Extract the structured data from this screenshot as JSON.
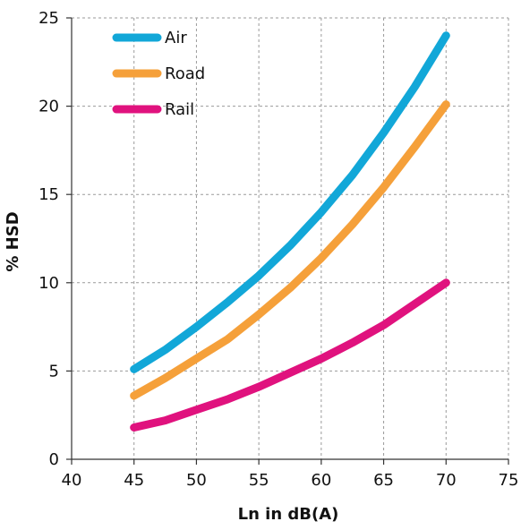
{
  "chart_data": {
    "type": "line",
    "title": "",
    "xlabel": "Ln in dB(A)",
    "ylabel": "% HSD",
    "xlim": [
      40,
      75
    ],
    "ylim": [
      0,
      25
    ],
    "xticks": [
      40,
      45,
      50,
      55,
      60,
      65,
      70,
      75
    ],
    "yticks": [
      0,
      5,
      10,
      15,
      20,
      25
    ],
    "grid": true,
    "legend_position": "top-left",
    "series": [
      {
        "name": "Air",
        "color": "#12A7D8",
        "x": [
          45,
          47.5,
          50,
          52.5,
          55,
          57.5,
          60,
          62.5,
          65,
          67.5,
          70
        ],
        "y": [
          5.1,
          6.2,
          7.5,
          8.9,
          10.4,
          12.1,
          14.0,
          16.1,
          18.5,
          21.1,
          24.0
        ]
      },
      {
        "name": "Road",
        "color": "#F5A03A",
        "x": [
          45,
          47.5,
          50,
          52.5,
          55,
          57.5,
          60,
          62.5,
          65,
          67.5,
          70
        ],
        "y": [
          3.6,
          4.6,
          5.7,
          6.8,
          8.2,
          9.7,
          11.4,
          13.3,
          15.4,
          17.7,
          20.1
        ]
      },
      {
        "name": "Rail",
        "color": "#E0127E",
        "x": [
          45,
          47.5,
          50,
          52.5,
          55,
          57.5,
          60,
          62.5,
          65,
          67.5,
          70
        ],
        "y": [
          1.8,
          2.2,
          2.8,
          3.4,
          4.1,
          4.9,
          5.7,
          6.6,
          7.6,
          8.8,
          10.0
        ]
      }
    ]
  }
}
